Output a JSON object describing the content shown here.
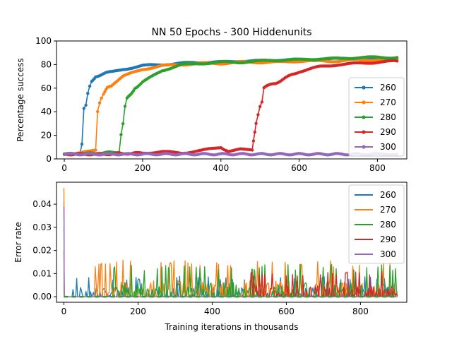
{
  "figure": {
    "title": "NN 50 Epochs - 300 Hiddenunits"
  },
  "colors": {
    "260": "#1f77b4",
    "270": "#ff7f0e",
    "280": "#2ca02c",
    "290": "#d62728",
    "300": "#9467bd"
  },
  "chart_data": [
    {
      "type": "line",
      "title": "NN 50 Epochs - 300 Hiddenunits",
      "xlabel": "",
      "ylabel": "Percentage success",
      "xlim": [
        -20,
        875
      ],
      "ylim": [
        0,
        100
      ],
      "xticks": [
        0,
        200,
        400,
        600,
        800
      ],
      "yticks": [
        0,
        20,
        40,
        60,
        80,
        100
      ],
      "markers": true,
      "legend_placement": "lower-right",
      "series": [
        {
          "name": "260",
          "color": "#1f77b4",
          "x": [
            0,
            20,
            40,
            45,
            50,
            55,
            60,
            65,
            70,
            80,
            100,
            120,
            150,
            200,
            250,
            300,
            350,
            400,
            450,
            500,
            550,
            600,
            650,
            700,
            750,
            800,
            850
          ],
          "y": [
            4,
            4,
            5,
            12,
            43,
            46,
            55,
            62,
            66,
            70,
            72,
            74,
            76,
            79,
            80,
            81,
            82,
            82,
            83,
            83,
            84,
            84,
            84,
            85,
            85,
            85,
            85
          ]
        },
        {
          "name": "270",
          "color": "#ff7f0e",
          "x": [
            0,
            50,
            80,
            85,
            90,
            95,
            100,
            110,
            120,
            150,
            200,
            250,
            300,
            350,
            400,
            450,
            500,
            550,
            600,
            650,
            700,
            750,
            800,
            850
          ],
          "y": [
            4,
            6,
            7,
            40,
            48,
            51,
            55,
            60,
            62,
            70,
            76,
            79,
            80,
            81,
            81,
            82,
            82,
            82,
            83,
            83,
            83,
            84,
            84,
            84
          ]
        },
        {
          "name": "280",
          "color": "#2ca02c",
          "x": [
            0,
            100,
            140,
            145,
            150,
            155,
            160,
            170,
            180,
            200,
            250,
            300,
            350,
            400,
            450,
            500,
            550,
            600,
            650,
            700,
            750,
            800,
            850
          ],
          "y": [
            4,
            5,
            6,
            20,
            30,
            45,
            51,
            55,
            60,
            65,
            75,
            80,
            81,
            82,
            82,
            83,
            84,
            84,
            85,
            85,
            86,
            86,
            86
          ]
        },
        {
          "name": "290",
          "color": "#d62728",
          "x": [
            0,
            100,
            200,
            250,
            300,
            350,
            400,
            420,
            450,
            480,
            490,
            495,
            500,
            505,
            510,
            520,
            540,
            560,
            600,
            650,
            700,
            750,
            800,
            850
          ],
          "y": [
            4,
            4,
            5,
            6,
            5,
            7,
            10,
            6,
            8,
            7,
            30,
            37,
            45,
            48,
            60,
            62,
            64,
            68,
            74,
            78,
            80,
            81,
            82,
            83
          ]
        },
        {
          "name": "300",
          "color": "#9467bd",
          "x": [
            0,
            100,
            200,
            300,
            400,
            500,
            600,
            700,
            800,
            850
          ],
          "y": [
            4,
            4,
            4,
            4,
            4,
            4,
            4,
            4,
            4,
            4
          ]
        }
      ]
    },
    {
      "type": "line",
      "title": "",
      "xlabel": "Training iterations in thousands",
      "ylabel": "Error rate",
      "xlim": [
        -20,
        925
      ],
      "ylim": [
        -0.0024,
        0.0495
      ],
      "xticks": [
        0,
        200,
        400,
        600,
        800
      ],
      "yticks": [
        0.0,
        0.01,
        0.02,
        0.03,
        0.04
      ],
      "ytick_labels": [
        "0.00",
        "0.01",
        "0.02",
        "0.03",
        "0.04"
      ],
      "markers": false,
      "legend_placement": "upper-right",
      "series": [
        {
          "name": "260",
          "color": "#1f77b4",
          "x_range": [
            0,
            900
          ],
          "initial_spike": 0.041,
          "noise_start": 20,
          "noise_max": 0.009,
          "density": 0.5
        },
        {
          "name": "270",
          "color": "#ff7f0e",
          "x_range": [
            0,
            900
          ],
          "initial_spike": 0.047,
          "noise_start": 80,
          "noise_max": 0.016,
          "density": 0.55
        },
        {
          "name": "280",
          "color": "#2ca02c",
          "x_range": [
            0,
            900
          ],
          "initial_spike": 0.03,
          "noise_start": 130,
          "noise_max": 0.014,
          "density": 0.55
        },
        {
          "name": "290",
          "color": "#d62728",
          "x_range": [
            0,
            900
          ],
          "initial_spike": 0.02,
          "noise_start": 500,
          "noise_max": 0.011,
          "density": 0.6
        },
        {
          "name": "300",
          "color": "#9467bd",
          "x_range": [
            0,
            900
          ],
          "initial_spike": 0.039,
          "noise_start": 900,
          "noise_max": 0.0,
          "density": 0.0
        }
      ]
    }
  ]
}
